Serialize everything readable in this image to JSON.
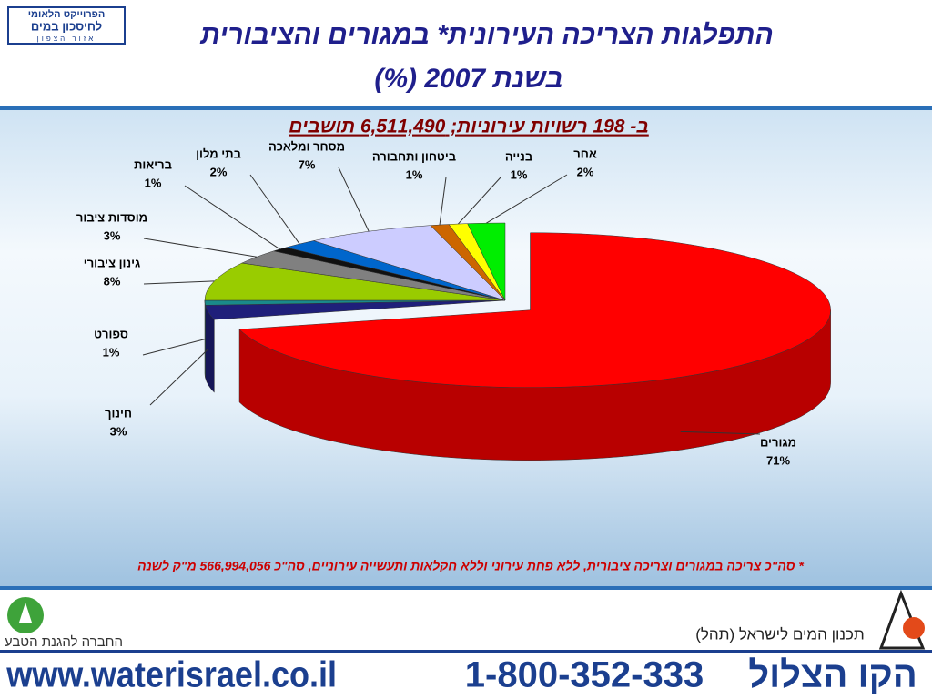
{
  "header": {
    "logo_lines": [
      "הפרוייקט הלאומי",
      "לחיסכון במים",
      "אזור הצפון"
    ]
  },
  "chart_data": {
    "type": "pie3d",
    "title": [
      "התפלגות הצריכה העירונית* במגורים והציבורית",
      "בשנת 2007 (%)"
    ],
    "subtitle": "ב- 198 רשויות עירוניות; 6,511,490 תושבים",
    "categories": [
      "מגורים",
      "חינוך",
      "ספורט",
      "גינון ציבורי",
      "מוסדות ציבור",
      "בריאות",
      "בתי מלון",
      "מסחר ומלאכה",
      "ביטחון ותחבורה",
      "בנייה",
      "אחר"
    ],
    "values": [
      71,
      3,
      1,
      8,
      3,
      1,
      2,
      7,
      1,
      1,
      2
    ],
    "value_labels": [
      "71%",
      "3%",
      "1%",
      "8%",
      "3%",
      "1%",
      "2%",
      "7%",
      "1%",
      "1%",
      "2%"
    ],
    "colors": [
      "#ff0000",
      "#1f1f7a",
      "#1a8a8a",
      "#99cc00",
      "#808080",
      "#111111",
      "#0066cc",
      "#ccccff",
      "#cc6600",
      "#ffff00",
      "#00ee00"
    ],
    "footnote": "* סה\"כ צריכה במגורים וצריכה ציבורית, ללא פחת עירוני וללא חקלאות ותעשייה עירוניים, סה\"כ 566,994,056 מ\"ק לשנה"
  },
  "footer": {
    "spni": "החברה להגנת הטבע",
    "tahal": "תכנון המים לישראל (תהל)",
    "url": "www.waterisrael.co.il",
    "phone": "1-800-352-333",
    "hotline": "הקו הצלול"
  }
}
